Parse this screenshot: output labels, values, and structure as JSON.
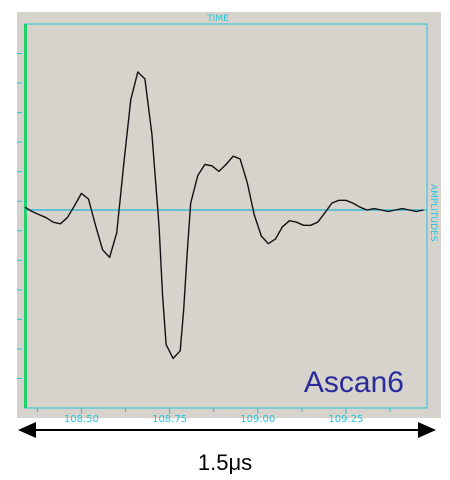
{
  "chart_data": {
    "type": "line",
    "title": "",
    "top_label": "TIME",
    "right_label": "AMPLITUDES",
    "annotation": "Ascan6",
    "xlabel": "",
    "ylabel": "",
    "x_ticks": [
      "108.50",
      "108.75",
      "109.00",
      "109.25"
    ],
    "x_tick_values": [
      108.5,
      108.75,
      109.0,
      109.25
    ],
    "xlim": [
      108.34,
      109.48
    ],
    "ylim": [
      -1.0,
      1.0
    ],
    "baseline": 0,
    "grid": false,
    "series": [
      {
        "x": [
          108.34,
          108.36,
          108.38,
          108.4,
          108.42,
          108.44,
          108.46,
          108.48,
          108.5,
          108.52,
          108.54,
          108.56,
          108.58,
          108.6,
          108.61,
          108.62,
          108.64,
          108.66,
          108.68,
          108.7,
          108.72,
          108.73,
          108.74,
          108.76,
          108.78,
          108.79,
          108.8,
          108.81,
          108.83,
          108.85,
          108.87,
          108.89,
          108.91,
          108.93,
          108.95,
          108.97,
          108.99,
          109.01,
          109.03,
          109.05,
          109.07,
          109.09,
          109.11,
          109.13,
          109.15,
          109.17,
          109.19,
          109.21,
          109.23,
          109.25,
          109.27,
          109.29,
          109.31,
          109.33,
          109.35,
          109.37,
          109.39,
          109.41,
          109.43,
          109.45,
          109.47
        ],
        "y": [
          0.02,
          -0.01,
          -0.03,
          -0.05,
          -0.08,
          -0.09,
          -0.05,
          0.03,
          0.12,
          0.08,
          -0.1,
          -0.26,
          -0.31,
          -0.15,
          0.08,
          0.33,
          0.8,
          1.0,
          0.95,
          0.55,
          -0.1,
          -0.55,
          -0.88,
          -0.97,
          -0.92,
          -0.65,
          -0.28,
          0.05,
          0.25,
          0.33,
          0.32,
          0.28,
          0.33,
          0.39,
          0.37,
          0.2,
          -0.03,
          -0.17,
          -0.22,
          -0.19,
          -0.11,
          -0.07,
          -0.08,
          -0.1,
          -0.1,
          -0.08,
          -0.02,
          0.05,
          0.07,
          0.07,
          0.05,
          0.02,
          0.0,
          0.01,
          0.0,
          -0.01,
          0.0,
          0.01,
          0.0,
          -0.01,
          0.0
        ]
      }
    ],
    "colors": {
      "background": "#d6d2cc",
      "frame": "#26c4dc",
      "baseline": "#1fb6d2",
      "trace": "#111111",
      "left_bar": "#1fd16a",
      "annotation": "#2b2b9a"
    }
  },
  "scale": {
    "duration_label": "1.5μs"
  }
}
